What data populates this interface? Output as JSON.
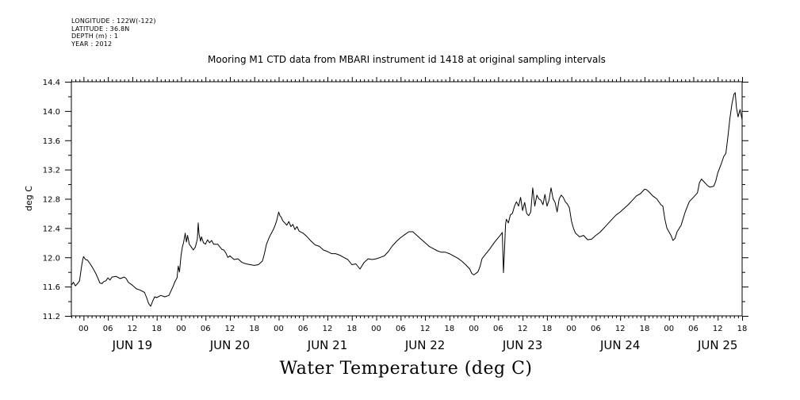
{
  "header": {
    "longitude": "LONGITUDE : 122W(-122)",
    "latitude": "LATITUDE : 36.8N",
    "depth": "DEPTH (m) : 1",
    "year": "YEAR : 2012"
  },
  "chart_data": {
    "type": "line",
    "title": "Mooring M1 CTD data from MBARI instrument id 1418 at original sampling intervals",
    "ylabel": "deg C",
    "xlabel": "Water Temperature (deg C)",
    "ylim": [
      11.2,
      14.4
    ],
    "yticks": [
      "11.2",
      "11.6",
      "12.0",
      "12.4",
      "12.8",
      "13.2",
      "13.6",
      "14.0",
      "14.4"
    ],
    "xlim_hours": [
      -3,
      162
    ],
    "hour_ticks": [
      "00",
      "06",
      "12",
      "18",
      "00",
      "06",
      "12",
      "18",
      "00",
      "06",
      "12",
      "18",
      "00",
      "06",
      "12",
      "18",
      "00",
      "06",
      "12",
      "18",
      "00",
      "06",
      "12",
      "18",
      "00",
      "06",
      "12",
      "18"
    ],
    "day_labels": [
      "JUN 19",
      "JUN 20",
      "JUN 21",
      "JUN 22",
      "JUN 23",
      "JUN 24",
      "JUN 25"
    ],
    "grid": false,
    "series": [
      {
        "values": [
          [
            -3,
            11.62
          ],
          [
            -2.5,
            11.66
          ],
          [
            -2,
            11.61
          ],
          [
            -1.5,
            11.64
          ],
          [
            -1,
            11.68
          ],
          [
            -0.5,
            11.87
          ],
          [
            -0.2,
            11.97
          ],
          [
            0,
            12.01
          ],
          [
            0.5,
            11.97
          ],
          [
            1,
            11.96
          ],
          [
            1.5,
            11.92
          ],
          [
            2,
            11.88
          ],
          [
            2.5,
            11.83
          ],
          [
            3,
            11.78
          ],
          [
            3.5,
            11.72
          ],
          [
            4,
            11.65
          ],
          [
            4.5,
            11.64
          ],
          [
            5,
            11.67
          ],
          [
            5.5,
            11.68
          ],
          [
            6,
            11.72
          ],
          [
            6.5,
            11.69
          ],
          [
            7,
            11.73
          ],
          [
            8,
            11.74
          ],
          [
            9,
            11.71
          ],
          [
            10,
            11.73
          ],
          [
            10.5,
            11.71
          ],
          [
            11,
            11.66
          ],
          [
            12,
            11.62
          ],
          [
            13,
            11.57
          ],
          [
            14,
            11.55
          ],
          [
            15,
            11.52
          ],
          [
            15.5,
            11.45
          ],
          [
            16,
            11.37
          ],
          [
            16.5,
            11.33
          ],
          [
            17,
            11.4
          ],
          [
            17.5,
            11.46
          ],
          [
            18,
            11.45
          ],
          [
            19,
            11.48
          ],
          [
            20,
            11.46
          ],
          [
            21,
            11.48
          ],
          [
            22,
            11.6
          ],
          [
            22.5,
            11.67
          ],
          [
            23,
            11.72
          ],
          [
            23.3,
            11.88
          ],
          [
            23.6,
            11.8
          ],
          [
            24,
            12.03
          ],
          [
            24.3,
            12.14
          ],
          [
            24.6,
            12.2
          ],
          [
            25,
            12.33
          ],
          [
            25.3,
            12.21
          ],
          [
            25.6,
            12.3
          ],
          [
            26,
            12.18
          ],
          [
            26.5,
            12.14
          ],
          [
            27,
            12.1
          ],
          [
            27.5,
            12.14
          ],
          [
            28,
            12.25
          ],
          [
            28.2,
            12.47
          ],
          [
            28.4,
            12.32
          ],
          [
            28.8,
            12.22
          ],
          [
            29,
            12.28
          ],
          [
            29.5,
            12.2
          ],
          [
            30,
            12.18
          ],
          [
            30.5,
            12.24
          ],
          [
            31,
            12.2
          ],
          [
            31.5,
            12.23
          ],
          [
            32,
            12.18
          ],
          [
            33,
            12.18
          ],
          [
            34,
            12.11
          ],
          [
            34.5,
            12.1
          ],
          [
            35,
            12.06
          ],
          [
            35.5,
            12.0
          ],
          [
            36,
            12.02
          ],
          [
            37,
            11.97
          ],
          [
            38,
            11.98
          ],
          [
            39,
            11.93
          ],
          [
            40,
            11.91
          ],
          [
            41,
            11.9
          ],
          [
            42,
            11.89
          ],
          [
            43,
            11.9
          ],
          [
            44,
            11.95
          ],
          [
            44.5,
            12.05
          ],
          [
            45,
            12.18
          ],
          [
            45.5,
            12.25
          ],
          [
            46,
            12.31
          ],
          [
            46.5,
            12.36
          ],
          [
            47,
            12.42
          ],
          [
            47.5,
            12.5
          ],
          [
            48,
            12.62
          ],
          [
            48.3,
            12.57
          ],
          [
            48.6,
            12.55
          ],
          [
            49,
            12.5
          ],
          [
            49.5,
            12.47
          ],
          [
            50,
            12.44
          ],
          [
            50.5,
            12.49
          ],
          [
            51,
            12.42
          ],
          [
            51.5,
            12.45
          ],
          [
            52,
            12.38
          ],
          [
            52.5,
            12.42
          ],
          [
            53,
            12.36
          ],
          [
            54,
            12.33
          ],
          [
            55,
            12.28
          ],
          [
            56,
            12.22
          ],
          [
            57,
            12.17
          ],
          [
            58,
            12.15
          ],
          [
            59,
            12.1
          ],
          [
            60,
            12.08
          ],
          [
            61,
            12.05
          ],
          [
            62,
            12.05
          ],
          [
            63,
            12.03
          ],
          [
            64,
            12.0
          ],
          [
            65,
            11.97
          ],
          [
            66,
            11.9
          ],
          [
            67,
            11.91
          ],
          [
            68,
            11.84
          ],
          [
            69,
            11.93
          ],
          [
            70,
            11.98
          ],
          [
            71,
            11.97
          ],
          [
            72,
            11.98
          ],
          [
            73,
            12.0
          ],
          [
            74,
            12.02
          ],
          [
            75,
            12.08
          ],
          [
            76,
            12.16
          ],
          [
            77,
            12.22
          ],
          [
            78,
            12.27
          ],
          [
            79,
            12.31
          ],
          [
            80,
            12.35
          ],
          [
            81,
            12.35
          ],
          [
            82,
            12.3
          ],
          [
            83,
            12.25
          ],
          [
            84,
            12.2
          ],
          [
            85,
            12.15
          ],
          [
            86,
            12.12
          ],
          [
            87,
            12.09
          ],
          [
            88,
            12.07
          ],
          [
            89,
            12.07
          ],
          [
            90,
            12.05
          ],
          [
            91,
            12.02
          ],
          [
            92,
            11.99
          ],
          [
            93,
            11.95
          ],
          [
            94,
            11.9
          ],
          [
            95,
            11.84
          ],
          [
            95.5,
            11.78
          ],
          [
            96,
            11.76
          ],
          [
            97,
            11.8
          ],
          [
            97.5,
            11.87
          ],
          [
            98,
            11.98
          ],
          [
            99,
            12.05
          ],
          [
            100,
            12.12
          ],
          [
            101,
            12.2
          ],
          [
            102,
            12.27
          ],
          [
            102.5,
            12.3
          ],
          [
            103,
            12.34
          ],
          [
            103.3,
            11.79
          ],
          [
            103.5,
            12.05
          ],
          [
            103.8,
            12.45
          ],
          [
            104,
            12.52
          ],
          [
            104.5,
            12.47
          ],
          [
            105,
            12.58
          ],
          [
            105.5,
            12.6
          ],
          [
            106,
            12.7
          ],
          [
            106.5,
            12.76
          ],
          [
            107,
            12.7
          ],
          [
            107.5,
            12.82
          ],
          [
            108,
            12.64
          ],
          [
            108.5,
            12.75
          ],
          [
            109,
            12.6
          ],
          [
            109.5,
            12.57
          ],
          [
            110,
            12.62
          ],
          [
            110.5,
            12.95
          ],
          [
            111,
            12.7
          ],
          [
            111.5,
            12.85
          ],
          [
            112,
            12.8
          ],
          [
            112.5,
            12.78
          ],
          [
            113,
            12.72
          ],
          [
            113.5,
            12.86
          ],
          [
            114,
            12.7
          ],
          [
            114.5,
            12.78
          ],
          [
            115,
            12.95
          ],
          [
            115.5,
            12.8
          ],
          [
            116,
            12.75
          ],
          [
            116.5,
            12.62
          ],
          [
            117,
            12.8
          ],
          [
            117.5,
            12.85
          ],
          [
            118,
            12.82
          ],
          [
            118.5,
            12.76
          ],
          [
            119,
            12.73
          ],
          [
            119.5,
            12.68
          ],
          [
            120,
            12.5
          ],
          [
            120.5,
            12.4
          ],
          [
            121,
            12.33
          ],
          [
            122,
            12.28
          ],
          [
            123,
            12.3
          ],
          [
            124,
            12.24
          ],
          [
            125,
            12.25
          ],
          [
            126,
            12.3
          ],
          [
            127,
            12.34
          ],
          [
            128,
            12.4
          ],
          [
            129,
            12.46
          ],
          [
            130,
            12.52
          ],
          [
            131,
            12.58
          ],
          [
            132,
            12.62
          ],
          [
            133,
            12.67
          ],
          [
            134,
            12.72
          ],
          [
            135,
            12.78
          ],
          [
            136,
            12.84
          ],
          [
            137,
            12.87
          ],
          [
            138,
            12.93
          ],
          [
            138.3,
            12.93
          ],
          [
            139,
            12.9
          ],
          [
            139.5,
            12.87
          ],
          [
            140,
            12.84
          ],
          [
            141,
            12.8
          ],
          [
            142,
            12.72
          ],
          [
            142.5,
            12.7
          ],
          [
            143,
            12.52
          ],
          [
            143.5,
            12.4
          ],
          [
            144,
            12.35
          ],
          [
            144.5,
            12.3
          ],
          [
            145,
            12.23
          ],
          [
            145.5,
            12.26
          ],
          [
            146,
            12.35
          ],
          [
            147,
            12.44
          ],
          [
            148,
            12.62
          ],
          [
            149,
            12.76
          ],
          [
            150,
            12.82
          ],
          [
            151,
            12.88
          ],
          [
            151.5,
            13.02
          ],
          [
            152,
            13.07
          ],
          [
            152.5,
            13.04
          ],
          [
            153,
            13.01
          ],
          [
            153.5,
            12.98
          ],
          [
            154,
            12.96
          ],
          [
            155,
            12.97
          ],
          [
            155.5,
            13.04
          ],
          [
            156,
            13.15
          ],
          [
            157,
            13.3
          ],
          [
            157.5,
            13.38
          ],
          [
            158,
            13.42
          ],
          [
            158.5,
            13.65
          ],
          [
            159,
            13.9
          ],
          [
            159.5,
            14.1
          ],
          [
            160,
            14.23
          ],
          [
            160.3,
            14.25
          ],
          [
            160.6,
            14.05
          ],
          [
            161,
            13.92
          ],
          [
            161.5,
            14.02
          ],
          [
            162,
            13.88
          ]
        ]
      }
    ]
  }
}
